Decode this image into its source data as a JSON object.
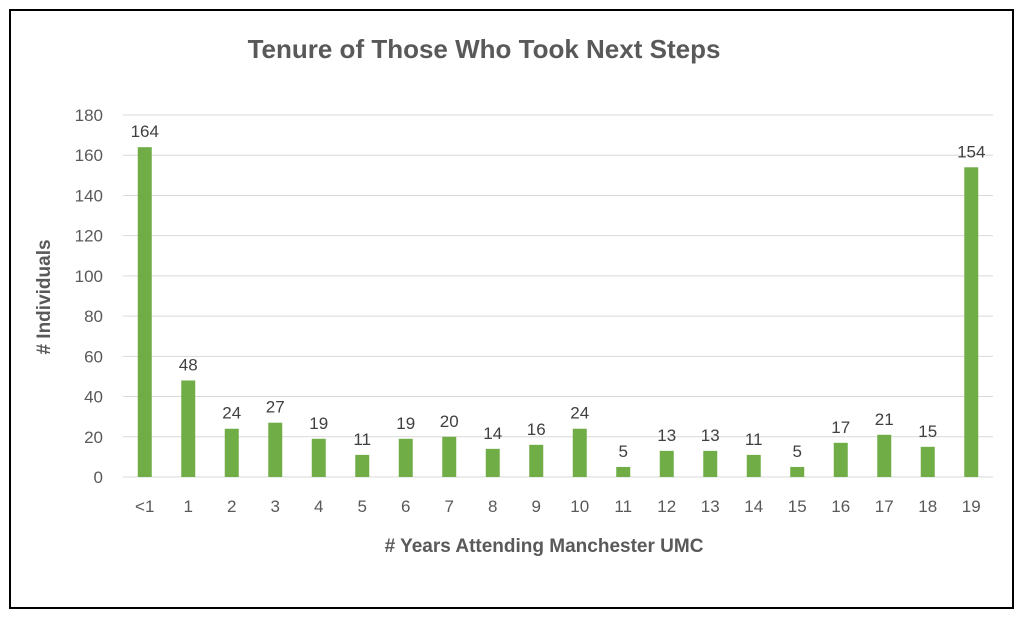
{
  "chart_data": {
    "type": "bar",
    "title": "Tenure of Those Who Took Next Steps",
    "xlabel": "# Years Attending Manchester UMC",
    "ylabel": "# Individuals",
    "categories": [
      "<1",
      "1",
      "2",
      "3",
      "4",
      "5",
      "6",
      "7",
      "8",
      "9",
      "10",
      "11",
      "12",
      "13",
      "14",
      "15",
      "16",
      "17",
      "18",
      "19"
    ],
    "values": [
      164,
      48,
      24,
      27,
      19,
      11,
      19,
      20,
      14,
      16,
      24,
      5,
      13,
      13,
      11,
      5,
      17,
      21,
      15,
      154
    ],
    "ylim": [
      0,
      180
    ],
    "yticks": [
      0,
      20,
      40,
      60,
      80,
      100,
      120,
      140,
      160,
      180
    ],
    "grid": true,
    "bar_color": "#70ad47",
    "grid_color": "#d9d9d9"
  }
}
